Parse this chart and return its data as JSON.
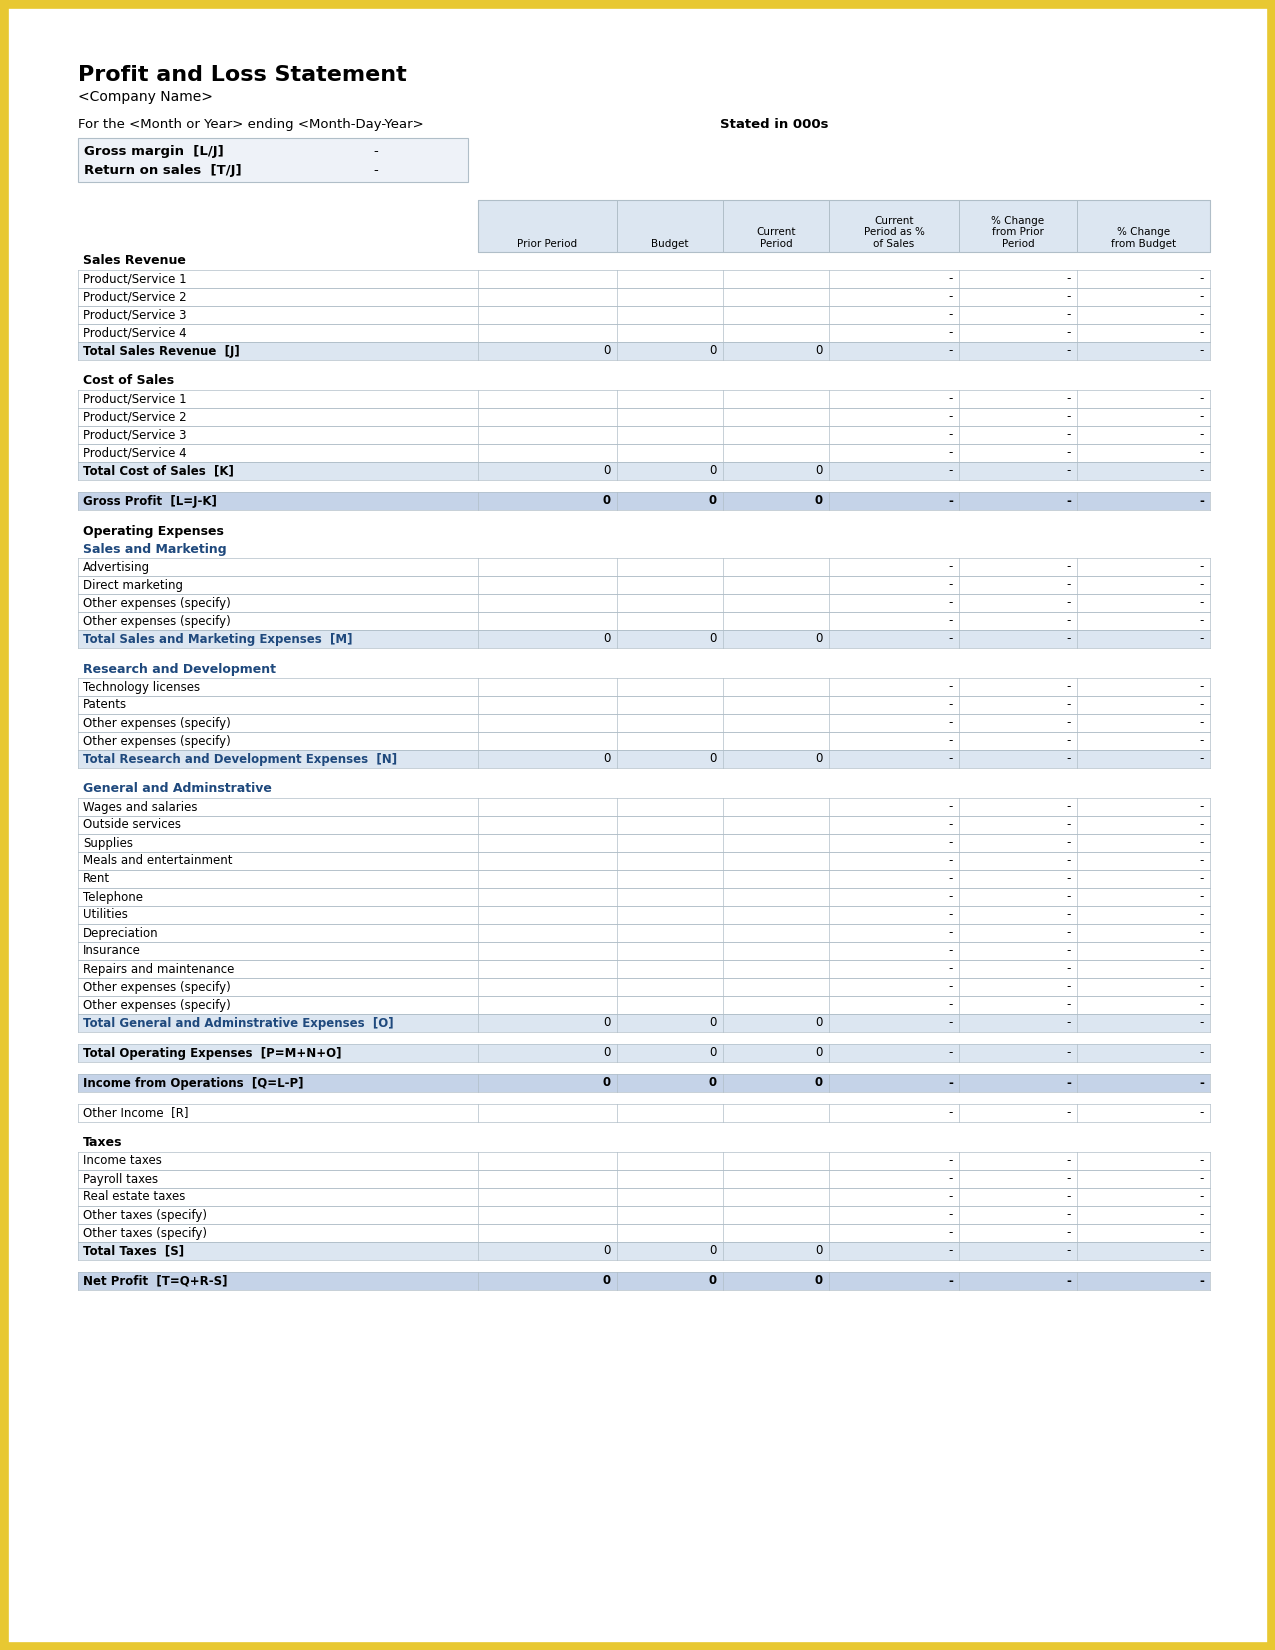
{
  "title": "Profit and Loss Statement",
  "company": "<Company Name>",
  "period_line": "For the <Month or Year> ending <Month-Day-Year>",
  "stated": "Stated in 000s",
  "gross_margin_label": "Gross margin  [L/J]",
  "gross_margin_value": "-",
  "return_on_sales_label": "Return on sales  [T/J]",
  "return_on_sales_value": "-",
  "col_headers": [
    "Prior Period",
    "Budget",
    "Current\nPeriod",
    "Current\nPeriod as %\nof Sales",
    "% Change\nfrom Prior\nPeriod",
    "% Change\nfrom Budget"
  ],
  "border_color": "#E8C832",
  "table_border": "#B0BEC8",
  "header_bg": "#DCE6F1",
  "total_bg": "#DCE6F1",
  "gross_profit_bg": "#C5D3E8",
  "blue_text": "#1F497D",
  "black": "#000000",
  "light_bg": "#EEF2F8",
  "rows": [
    {
      "label": "Sales Revenue",
      "type": "section_header"
    },
    {
      "label": "Product/Service 1",
      "type": "data",
      "values": [
        "",
        "",
        "",
        "-",
        "-",
        "-"
      ]
    },
    {
      "label": "Product/Service 2",
      "type": "data",
      "values": [
        "",
        "",
        "",
        "-",
        "-",
        "-"
      ]
    },
    {
      "label": "Product/Service 3",
      "type": "data",
      "values": [
        "",
        "",
        "",
        "-",
        "-",
        "-"
      ]
    },
    {
      "label": "Product/Service 4",
      "type": "data",
      "values": [
        "",
        "",
        "",
        "-",
        "-",
        "-"
      ]
    },
    {
      "label": "Total Sales Revenue  [J]",
      "type": "total",
      "values": [
        "0",
        "0",
        "0",
        "-",
        "-",
        "-"
      ]
    },
    {
      "label": "",
      "type": "spacer"
    },
    {
      "label": "Cost of Sales",
      "type": "section_header"
    },
    {
      "label": "Product/Service 1",
      "type": "data",
      "values": [
        "",
        "",
        "",
        "-",
        "-",
        "-"
      ]
    },
    {
      "label": "Product/Service 2",
      "type": "data",
      "values": [
        "",
        "",
        "",
        "-",
        "-",
        "-"
      ]
    },
    {
      "label": "Product/Service 3",
      "type": "data",
      "values": [
        "",
        "",
        "",
        "-",
        "-",
        "-"
      ]
    },
    {
      "label": "Product/Service 4",
      "type": "data",
      "values": [
        "",
        "",
        "",
        "-",
        "-",
        "-"
      ]
    },
    {
      "label": "Total Cost of Sales  [K]",
      "type": "total",
      "values": [
        "0",
        "0",
        "0",
        "-",
        "-",
        "-"
      ]
    },
    {
      "label": "",
      "type": "spacer"
    },
    {
      "label": "Gross Profit  [L=J-K]",
      "type": "gross_profit",
      "values": [
        "0",
        "0",
        "0",
        "-",
        "-",
        "-"
      ]
    },
    {
      "label": "",
      "type": "spacer"
    },
    {
      "label": "Operating Expenses",
      "type": "section_header"
    },
    {
      "label": "Sales and Marketing",
      "type": "subsection_header"
    },
    {
      "label": "Advertising",
      "type": "data",
      "values": [
        "",
        "",
        "",
        "-",
        "-",
        "-"
      ]
    },
    {
      "label": "Direct marketing",
      "type": "data",
      "values": [
        "",
        "",
        "",
        "-",
        "-",
        "-"
      ]
    },
    {
      "label": "Other expenses (specify)",
      "type": "data",
      "values": [
        "",
        "",
        "",
        "-",
        "-",
        "-"
      ]
    },
    {
      "label": "Other expenses (specify)",
      "type": "data",
      "values": [
        "",
        "",
        "",
        "-",
        "-",
        "-"
      ]
    },
    {
      "label": "Total Sales and Marketing Expenses  [M]",
      "type": "total_blue",
      "values": [
        "0",
        "0",
        "0",
        "-",
        "-",
        "-"
      ]
    },
    {
      "label": "",
      "type": "spacer"
    },
    {
      "label": "Research and Development",
      "type": "subsection_header"
    },
    {
      "label": "Technology licenses",
      "type": "data",
      "values": [
        "",
        "",
        "",
        "-",
        "-",
        "-"
      ]
    },
    {
      "label": "Patents",
      "type": "data",
      "values": [
        "",
        "",
        "",
        "-",
        "-",
        "-"
      ]
    },
    {
      "label": "Other expenses (specify)",
      "type": "data",
      "values": [
        "",
        "",
        "",
        "-",
        "-",
        "-"
      ]
    },
    {
      "label": "Other expenses (specify)",
      "type": "data",
      "values": [
        "",
        "",
        "",
        "-",
        "-",
        "-"
      ]
    },
    {
      "label": "Total Research and Development Expenses  [N]",
      "type": "total_blue",
      "values": [
        "0",
        "0",
        "0",
        "-",
        "-",
        "-"
      ]
    },
    {
      "label": "",
      "type": "spacer"
    },
    {
      "label": "General and Adminstrative",
      "type": "subsection_header"
    },
    {
      "label": "Wages and salaries",
      "type": "data",
      "values": [
        "",
        "",
        "",
        "-",
        "-",
        "-"
      ]
    },
    {
      "label": "Outside services",
      "type": "data",
      "values": [
        "",
        "",
        "",
        "-",
        "-",
        "-"
      ]
    },
    {
      "label": "Supplies",
      "type": "data",
      "values": [
        "",
        "",
        "",
        "-",
        "-",
        "-"
      ]
    },
    {
      "label": "Meals and entertainment",
      "type": "data",
      "values": [
        "",
        "",
        "",
        "-",
        "-",
        "-"
      ]
    },
    {
      "label": "Rent",
      "type": "data",
      "values": [
        "",
        "",
        "",
        "-",
        "-",
        "-"
      ]
    },
    {
      "label": "Telephone",
      "type": "data",
      "values": [
        "",
        "",
        "",
        "-",
        "-",
        "-"
      ]
    },
    {
      "label": "Utilities",
      "type": "data",
      "values": [
        "",
        "",
        "",
        "-",
        "-",
        "-"
      ]
    },
    {
      "label": "Depreciation",
      "type": "data",
      "values": [
        "",
        "",
        "",
        "-",
        "-",
        "-"
      ]
    },
    {
      "label": "Insurance",
      "type": "data",
      "values": [
        "",
        "",
        "",
        "-",
        "-",
        "-"
      ]
    },
    {
      "label": "Repairs and maintenance",
      "type": "data",
      "values": [
        "",
        "",
        "",
        "-",
        "-",
        "-"
      ]
    },
    {
      "label": "Other expenses (specify)",
      "type": "data",
      "values": [
        "",
        "",
        "",
        "-",
        "-",
        "-"
      ]
    },
    {
      "label": "Other expenses (specify)",
      "type": "data",
      "values": [
        "",
        "",
        "",
        "-",
        "-",
        "-"
      ]
    },
    {
      "label": "Total General and Adminstrative Expenses  [O]",
      "type": "total_blue",
      "values": [
        "0",
        "0",
        "0",
        "-",
        "-",
        "-"
      ]
    },
    {
      "label": "",
      "type": "spacer"
    },
    {
      "label": "Total Operating Expenses  [P=M+N+O]",
      "type": "total",
      "values": [
        "0",
        "0",
        "0",
        "-",
        "-",
        "-"
      ]
    },
    {
      "label": "",
      "type": "spacer"
    },
    {
      "label": "Income from Operations  [Q=L-P]",
      "type": "gross_profit",
      "values": [
        "0",
        "0",
        "0",
        "-",
        "-",
        "-"
      ]
    },
    {
      "label": "",
      "type": "spacer"
    },
    {
      "label": "Other Income  [R]",
      "type": "data",
      "values": [
        "",
        "",
        "",
        "-",
        "-",
        "-"
      ]
    },
    {
      "label": "",
      "type": "spacer"
    },
    {
      "label": "Taxes",
      "type": "section_header"
    },
    {
      "label": "Income taxes",
      "type": "data",
      "values": [
        "",
        "",
        "",
        "-",
        "-",
        "-"
      ]
    },
    {
      "label": "Payroll taxes",
      "type": "data",
      "values": [
        "",
        "",
        "",
        "-",
        "-",
        "-"
      ]
    },
    {
      "label": "Real estate taxes",
      "type": "data",
      "values": [
        "",
        "",
        "",
        "-",
        "-",
        "-"
      ]
    },
    {
      "label": "Other taxes (specify)",
      "type": "data",
      "values": [
        "",
        "",
        "",
        "-",
        "-",
        "-"
      ]
    },
    {
      "label": "Other taxes (specify)",
      "type": "data",
      "values": [
        "",
        "",
        "",
        "-",
        "-",
        "-"
      ]
    },
    {
      "label": "Total Taxes  [S]",
      "type": "total",
      "values": [
        "0",
        "0",
        "0",
        "-",
        "-",
        "-"
      ]
    },
    {
      "label": "",
      "type": "spacer"
    },
    {
      "label": "Net Profit  [T=Q+R-S]",
      "type": "net_profit",
      "values": [
        "0",
        "0",
        "0",
        "-",
        "-",
        "-"
      ]
    }
  ]
}
